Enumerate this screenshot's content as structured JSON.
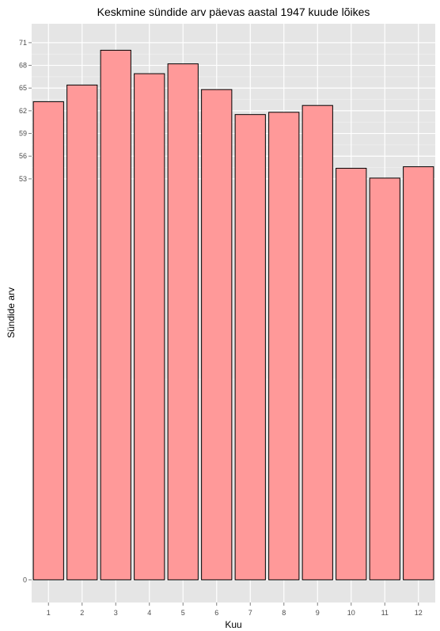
{
  "chart_data": {
    "type": "bar",
    "title": "Keskmine sündide arv päevas aastal 1947 kuude lõikes",
    "xlabel": "Kuu",
    "ylabel": "Sündide arv",
    "categories": [
      "1",
      "2",
      "3",
      "4",
      "5",
      "6",
      "7",
      "8",
      "9",
      "10",
      "11",
      "12"
    ],
    "values": [
      63.2,
      65.4,
      70.0,
      66.9,
      68.2,
      64.8,
      61.5,
      61.8,
      62.7,
      54.4,
      53.1,
      54.6
    ],
    "y_ticks": [
      {
        "value": 0,
        "label": "0"
      },
      {
        "value": 53,
        "label": "53"
      },
      {
        "value": 56,
        "label": "56"
      },
      {
        "value": 59,
        "label": "59"
      },
      {
        "value": 62,
        "label": "62"
      },
      {
        "value": 65,
        "label": "65"
      },
      {
        "value": 68,
        "label": "68"
      },
      {
        "value": 71,
        "label": "71"
      }
    ],
    "ylim": [
      -3.0,
      73.5
    ],
    "grid": true,
    "bar_fill": "#ff9999",
    "bar_stroke": "#000000",
    "panel_background": "#e5e5e5",
    "grid_color": "#ffffff"
  }
}
